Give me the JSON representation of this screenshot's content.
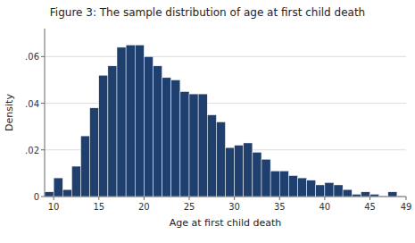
{
  "chart_data": {
    "type": "histogram",
    "title": "Figure 3:  The sample distribution of age at first child death",
    "x_label": "Age at first child death",
    "y_label": "Density",
    "bins": [
      9,
      10,
      11,
      12,
      13,
      14,
      15,
      16,
      17,
      18,
      19,
      20,
      21,
      22,
      23,
      24,
      25,
      26,
      27,
      28,
      29,
      30,
      31,
      32,
      33,
      34,
      35,
      36,
      37,
      38,
      39,
      40,
      41,
      42,
      43,
      44,
      45,
      46,
      47,
      48,
      49
    ],
    "values": [
      0.002,
      0.008,
      0.003,
      0.013,
      0.026,
      0.038,
      0.052,
      0.056,
      0.064,
      0.065,
      0.065,
      0.06,
      0.056,
      0.051,
      0.05,
      0.045,
      0.044,
      0.044,
      0.035,
      0.032,
      0.021,
      0.022,
      0.023,
      0.019,
      0.016,
      0.011,
      0.011,
      0.009,
      0.008,
      0.007,
      0.005,
      0.006,
      0.005,
      0.003,
      0.001,
      0.002,
      0.001,
      0.0,
      0.002,
      0.0
    ],
    "color": "#1F3F6E",
    "xlim": [
      9,
      49
    ],
    "xticks": [
      10,
      15,
      20,
      25,
      30,
      35,
      40,
      45,
      49
    ],
    "ylim": [
      0,
      0.072
    ],
    "yticks": [
      0,
      {
        "value": 0.02,
        "label": ".02"
      },
      {
        "value": 0.04,
        "label": ".04"
      },
      {
        "value": 0.06,
        "label": ".06"
      }
    ],
    "grid": true
  }
}
